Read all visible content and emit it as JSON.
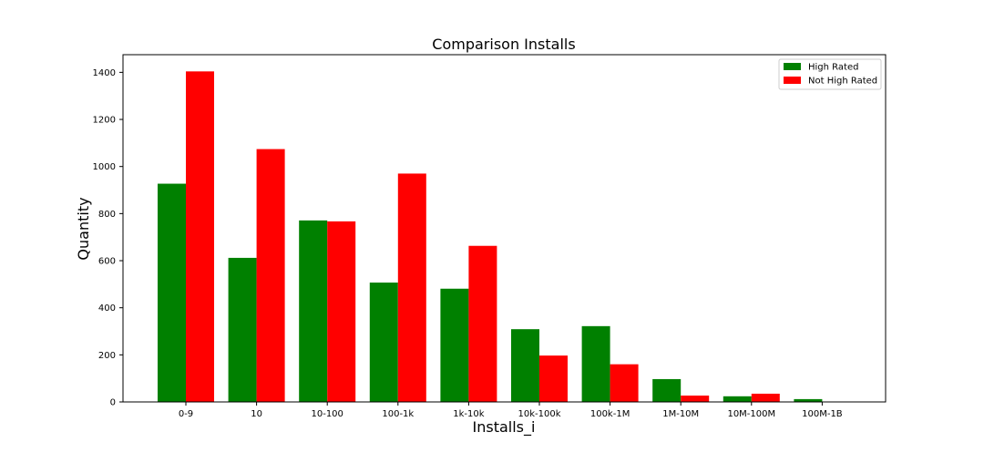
{
  "chart_data": {
    "type": "bar",
    "title": "Comparison Installs",
    "xlabel": "Installs_i",
    "ylabel": "Quantity",
    "categories": [
      "0-9",
      "10",
      "10-100",
      "100-1k",
      "1k-10k",
      "10k-100k",
      "100k-1M",
      "1M-10M",
      "10M-100M",
      "100M-1B"
    ],
    "series": [
      {
        "name": "High Rated",
        "color": "#008000",
        "values": [
          927,
          612,
          771,
          507,
          481,
          309,
          322,
          97,
          24,
          12
        ]
      },
      {
        "name": "Not High Rated",
        "color": "#ff0000",
        "values": [
          1404,
          1074,
          767,
          970,
          663,
          197,
          160,
          27,
          35,
          0
        ]
      }
    ],
    "ylim": [
      0,
      1475
    ],
    "yticks": [
      0,
      200,
      400,
      600,
      800,
      1000,
      1200,
      1400
    ],
    "legend_position": "top-right",
    "grid": false
  }
}
